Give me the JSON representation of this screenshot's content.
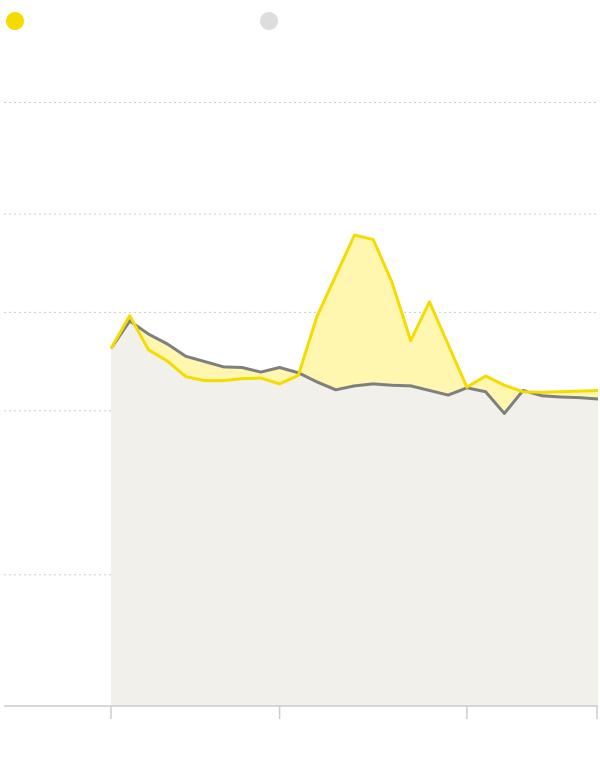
{
  "colors": {
    "primary": "#f5dc00",
    "primary_fill": "#fff7b0",
    "secondary": "#7f7f7f",
    "secondary_fill": "#f1f0ea",
    "legend_secondary_dot": "#dddddd",
    "grid": "#cccccc",
    "axis": "#cccccc"
  },
  "legend": [
    {
      "label": ""
    },
    {
      "label": ""
    }
  ],
  "chart_data": {
    "type": "line",
    "title": "",
    "xlabel": "",
    "ylabel": "",
    "x": [
      0,
      1,
      2,
      3,
      4,
      5,
      6,
      7,
      8,
      9,
      10,
      11,
      12,
      13,
      14,
      15,
      16,
      17,
      18,
      19,
      20,
      21,
      22,
      23,
      24,
      25,
      26
    ],
    "x_ticks": [
      0,
      9,
      19,
      26
    ],
    "ylim": [
      0,
      100
    ],
    "gridlines": [
      20,
      45,
      60,
      75,
      92
    ],
    "grid": true,
    "series": [
      {
        "values": [
          54.5,
          59.5,
          54.3,
          52.6,
          50.2,
          49.6,
          49.6,
          49.9,
          50.0,
          49.1,
          50.4,
          59.4,
          65.6,
          71.8,
          71.1,
          64.6,
          55.7,
          61.6,
          55.1,
          48.6,
          50.3,
          48.9,
          47.9,
          47.8,
          47.9,
          48.0,
          48.1
        ]
      },
      {
        "values": [
          54.5,
          58.7,
          56.7,
          55.2,
          53.3,
          52.5,
          51.7,
          51.6,
          50.9,
          51.6,
          50.8,
          49.4,
          48.2,
          48.8,
          49.1,
          48.9,
          48.8,
          48.1,
          47.4,
          48.5,
          47.9,
          44.6,
          48.1,
          47.3,
          47.1,
          47.0,
          46.8
        ]
      }
    ]
  }
}
